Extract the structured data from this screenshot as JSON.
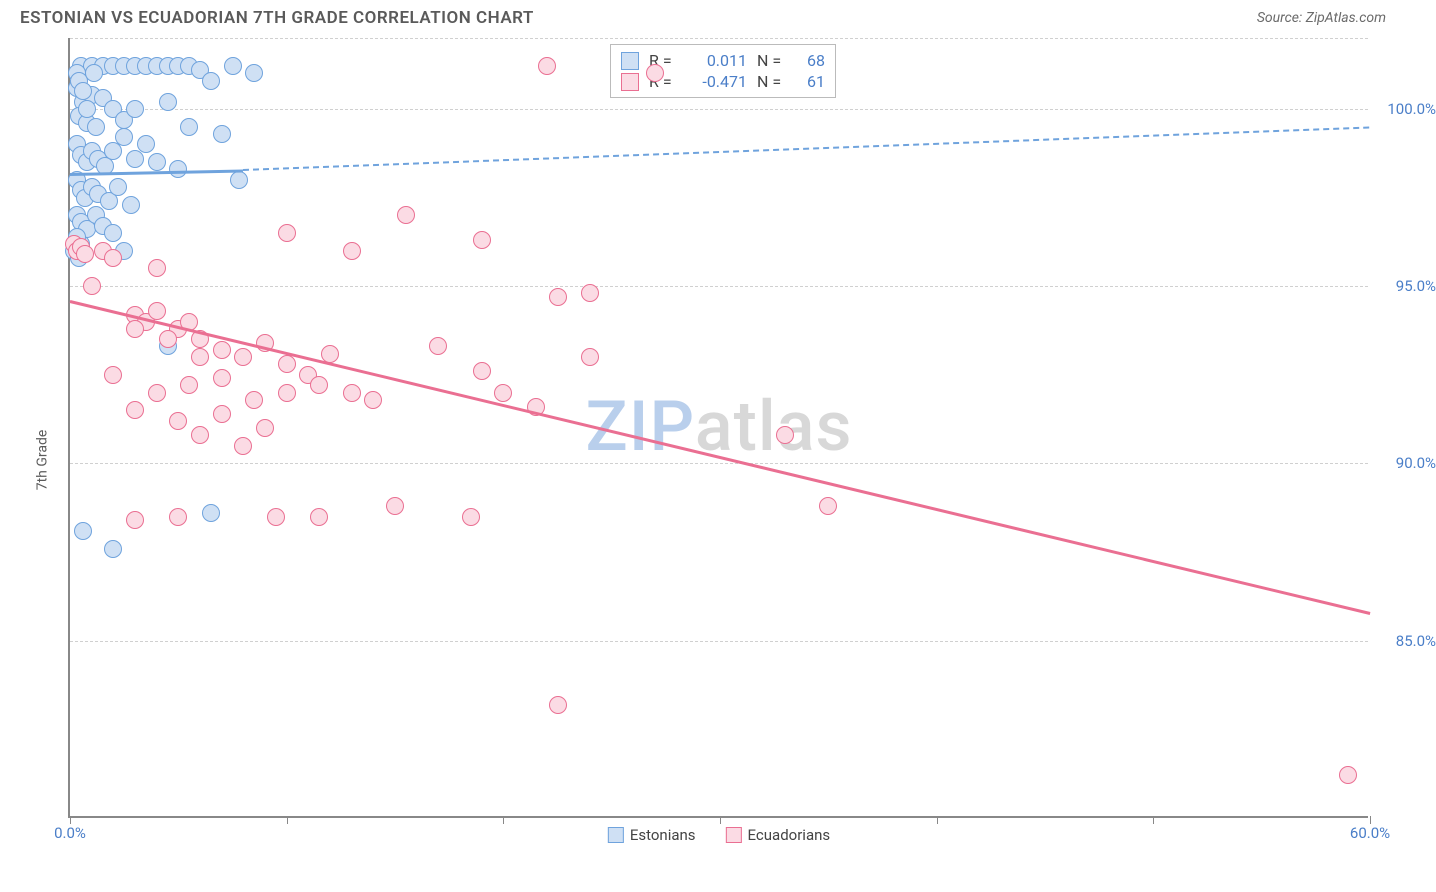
{
  "title": "ESTONIAN VS ECUADORIAN 7TH GRADE CORRELATION CHART",
  "source_label": "Source: ZipAtlas.com",
  "ylabel": "7th Grade",
  "watermark": {
    "zip": "ZIP",
    "atlas": "atlas"
  },
  "chart": {
    "type": "scatter",
    "xlim": [
      0,
      60
    ],
    "ylim": [
      80,
      102
    ],
    "x_ticks": [
      0,
      10,
      20,
      30,
      40,
      50,
      60
    ],
    "x_tick_labels": [
      "0.0%",
      "",
      "",
      "",
      "",
      "",
      "60.0%"
    ],
    "y_gridlines": [
      85,
      90,
      95,
      100,
      102
    ],
    "y_tick_labels": {
      "85": "85.0%",
      "90": "90.0%",
      "95": "95.0%",
      "100": "100.0%"
    },
    "grid_color": "#d0d0d0",
    "point_radius": 9,
    "point_stroke_width": 1.5,
    "series": [
      {
        "name": "Estonians",
        "fill": "#cfe0f4",
        "stroke": "#6fa3dd",
        "R": "0.011",
        "N": "68",
        "regression": {
          "x1": 0,
          "y1": 98.2,
          "x2": 8,
          "y2": 98.3,
          "solid": true,
          "width": 3
        },
        "regression_dash": {
          "x1": 8,
          "y1": 98.3,
          "x2": 60,
          "y2": 99.5,
          "solid": false,
          "width": 2
        },
        "points": [
          [
            0.5,
            101.2
          ],
          [
            1.0,
            101.2
          ],
          [
            1.5,
            101.2
          ],
          [
            2.0,
            101.2
          ],
          [
            2.5,
            101.2
          ],
          [
            3.0,
            101.2
          ],
          [
            3.5,
            101.2
          ],
          [
            4.0,
            101.2
          ],
          [
            4.5,
            101.2
          ],
          [
            5.0,
            101.2
          ],
          [
            5.5,
            101.2
          ],
          [
            6.0,
            101.1
          ],
          [
            7.5,
            101.2
          ],
          [
            8.5,
            101.0
          ],
          [
            0.3,
            100.6
          ],
          [
            0.6,
            100.2
          ],
          [
            1.0,
            100.4
          ],
          [
            1.5,
            100.3
          ],
          [
            0.4,
            99.8
          ],
          [
            0.8,
            99.6
          ],
          [
            1.2,
            99.5
          ],
          [
            2.0,
            100.0
          ],
          [
            2.5,
            99.7
          ],
          [
            3.0,
            100.0
          ],
          [
            4.5,
            100.2
          ],
          [
            5.5,
            99.5
          ],
          [
            6.5,
            100.8
          ],
          [
            0.3,
            99.0
          ],
          [
            0.5,
            98.7
          ],
          [
            0.8,
            98.5
          ],
          [
            1.0,
            98.8
          ],
          [
            1.3,
            98.6
          ],
          [
            1.6,
            98.4
          ],
          [
            2.0,
            98.8
          ],
          [
            2.5,
            99.2
          ],
          [
            3.0,
            98.6
          ],
          [
            3.5,
            99.0
          ],
          [
            4.0,
            98.5
          ],
          [
            5.0,
            98.3
          ],
          [
            7.0,
            99.3
          ],
          [
            7.8,
            98.0
          ],
          [
            0.3,
            98.0
          ],
          [
            0.5,
            97.7
          ],
          [
            0.7,
            97.5
          ],
          [
            1.0,
            97.8
          ],
          [
            1.3,
            97.6
          ],
          [
            1.8,
            97.4
          ],
          [
            2.2,
            97.8
          ],
          [
            2.8,
            97.3
          ],
          [
            0.3,
            97.0
          ],
          [
            0.5,
            96.8
          ],
          [
            0.8,
            96.6
          ],
          [
            1.2,
            97.0
          ],
          [
            1.5,
            96.7
          ],
          [
            2.0,
            96.5
          ],
          [
            0.5,
            96.2
          ],
          [
            0.3,
            96.4
          ],
          [
            2.5,
            96.0
          ],
          [
            0.2,
            96.0
          ],
          [
            0.4,
            95.8
          ],
          [
            4.5,
            93.3
          ],
          [
            0.6,
            88.1
          ],
          [
            2.0,
            87.6
          ],
          [
            6.5,
            88.6
          ],
          [
            0.3,
            101.0
          ],
          [
            0.4,
            100.8
          ],
          [
            0.6,
            100.5
          ],
          [
            0.8,
            100.0
          ],
          [
            1.1,
            101.0
          ]
        ]
      },
      {
        "name": "Ecuadorians",
        "fill": "#fbdbe4",
        "stroke": "#ea6f92",
        "R": "-0.471",
        "N": "61",
        "regression": {
          "x1": 0,
          "y1": 94.6,
          "x2": 60,
          "y2": 85.8,
          "solid": true,
          "width": 3
        },
        "points": [
          [
            0.2,
            96.2
          ],
          [
            0.3,
            96.0
          ],
          [
            0.5,
            96.1
          ],
          [
            0.7,
            95.9
          ],
          [
            1.5,
            96.0
          ],
          [
            2.0,
            95.8
          ],
          [
            3.0,
            94.2
          ],
          [
            3.5,
            94.0
          ],
          [
            4.0,
            94.3
          ],
          [
            5.0,
            93.8
          ],
          [
            5.5,
            94.0
          ],
          [
            6.0,
            93.5
          ],
          [
            4.0,
            95.5
          ],
          [
            10.0,
            96.5
          ],
          [
            13.0,
            96.0
          ],
          [
            15.5,
            97.0
          ],
          [
            19.0,
            96.3
          ],
          [
            22.0,
            101.2
          ],
          [
            27.0,
            101.0
          ],
          [
            22.5,
            94.7
          ],
          [
            24.0,
            94.8
          ],
          [
            3.0,
            93.8
          ],
          [
            4.5,
            93.5
          ],
          [
            6.0,
            93.0
          ],
          [
            7.0,
            93.2
          ],
          [
            8.0,
            93.0
          ],
          [
            9.0,
            93.4
          ],
          [
            10.0,
            92.8
          ],
          [
            11.0,
            92.5
          ],
          [
            12.0,
            93.1
          ],
          [
            2.0,
            92.5
          ],
          [
            4.0,
            92.0
          ],
          [
            5.5,
            92.2
          ],
          [
            7.0,
            92.4
          ],
          [
            8.5,
            91.8
          ],
          [
            10.0,
            92.0
          ],
          [
            11.5,
            92.2
          ],
          [
            13.0,
            92.0
          ],
          [
            3.0,
            91.5
          ],
          [
            5.0,
            91.2
          ],
          [
            7.0,
            91.4
          ],
          [
            9.0,
            91.0
          ],
          [
            14.0,
            91.8
          ],
          [
            20.0,
            92.0
          ],
          [
            21.5,
            91.6
          ],
          [
            6.0,
            90.8
          ],
          [
            8.0,
            90.5
          ],
          [
            33.0,
            90.8
          ],
          [
            35.0,
            88.8
          ],
          [
            3.0,
            88.4
          ],
          [
            5.0,
            88.5
          ],
          [
            9.5,
            88.5
          ],
          [
            11.5,
            88.5
          ],
          [
            15.0,
            88.8
          ],
          [
            18.5,
            88.5
          ],
          [
            22.5,
            83.2
          ],
          [
            59.0,
            81.2
          ],
          [
            17.0,
            93.3
          ],
          [
            19.0,
            92.6
          ],
          [
            24.0,
            93.0
          ],
          [
            1.0,
            95.0
          ]
        ]
      }
    ]
  },
  "legend_stats": {
    "r_label": "R =",
    "n_label": "N ="
  }
}
